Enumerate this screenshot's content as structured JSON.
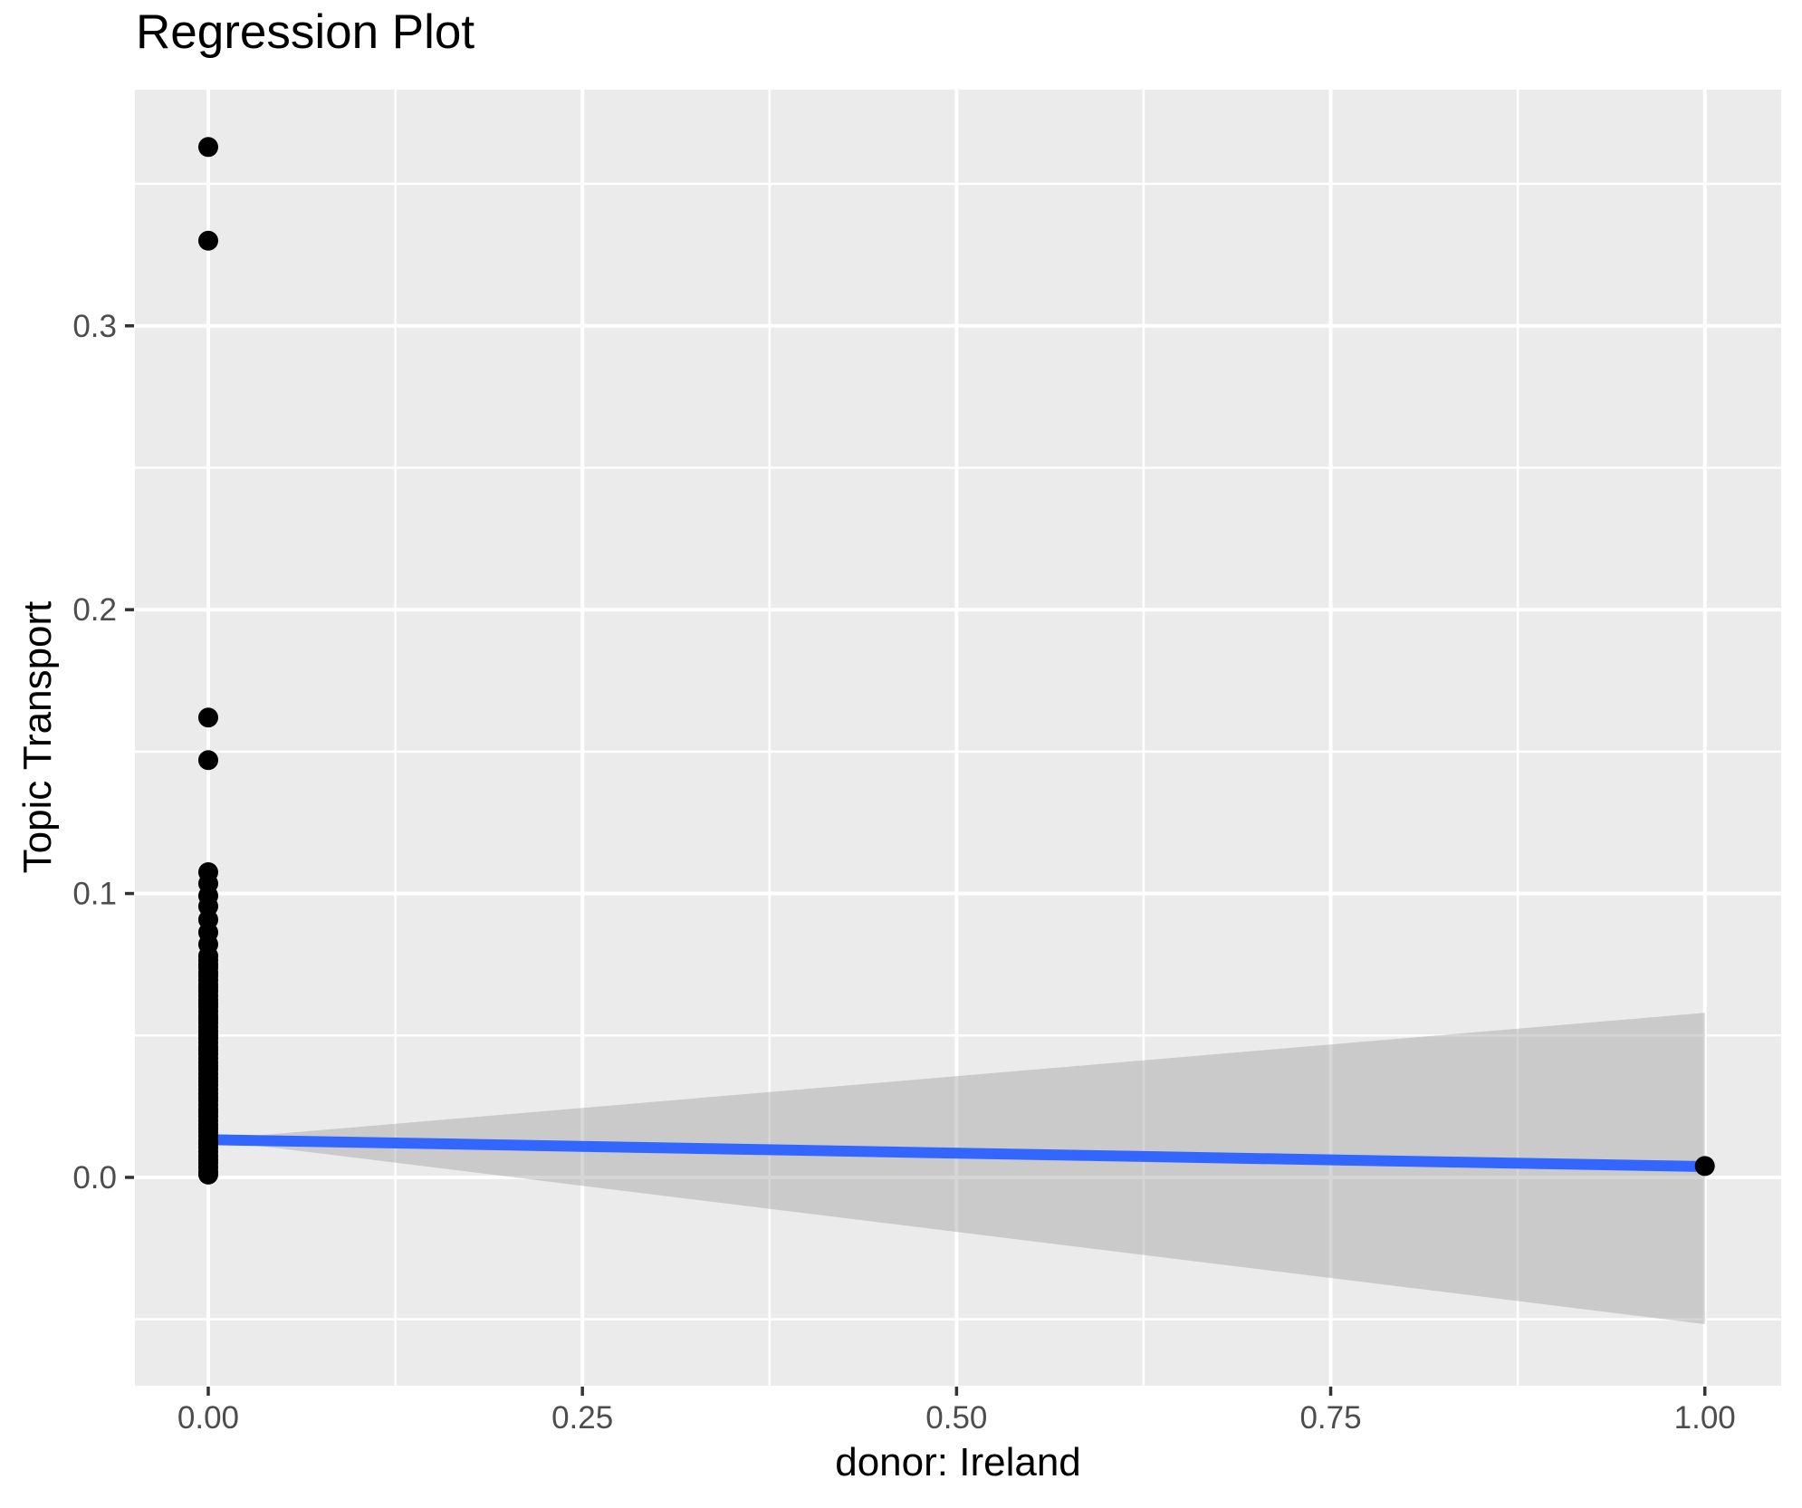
{
  "title": "Regression Plot",
  "chart_data": {
    "type": "scatter",
    "title": "Regression Plot",
    "xlabel": "donor: Ireland",
    "ylabel": "Topic Transport",
    "legend": "none",
    "grid": true,
    "xlim": [
      -0.049,
      1.051
    ],
    "ylim": [
      -0.0734,
      0.3832
    ],
    "x_ticks": [
      {
        "v": 0.0,
        "label": "0.00"
      },
      {
        "v": 0.25,
        "label": "0.25"
      },
      {
        "v": 0.5,
        "label": "0.50"
      },
      {
        "v": 0.75,
        "label": "0.75"
      },
      {
        "v": 1.0,
        "label": "1.00"
      }
    ],
    "y_ticks": [
      {
        "v": 0.0,
        "label": "0.0"
      },
      {
        "v": 0.1,
        "label": "0.1"
      },
      {
        "v": 0.2,
        "label": "0.2"
      },
      {
        "v": 0.3,
        "label": "0.3"
      }
    ],
    "x_minor": [
      0.125,
      0.375,
      0.625,
      0.875
    ],
    "y_minor": [
      -0.05,
      0.05,
      0.15,
      0.25,
      0.35
    ],
    "points_at_x0": [
      0.363,
      0.33,
      0.162,
      0.147,
      0.1075,
      0.1035,
      0.0992,
      0.0955,
      0.0908,
      0.0863,
      0.0821,
      0.078,
      0.0765,
      0.075,
      0.0738,
      0.0722,
      0.071,
      0.0695,
      0.068,
      0.0668,
      0.0655,
      0.064,
      0.0625,
      0.0612,
      0.06,
      0.0585,
      0.057,
      0.0558,
      0.0545,
      0.053,
      0.0515,
      0.0502,
      0.049,
      0.0475,
      0.046,
      0.0448,
      0.0435,
      0.042,
      0.0405,
      0.0392,
      0.038,
      0.0365,
      0.035,
      0.0338,
      0.0325,
      0.031,
      0.0295,
      0.0282,
      0.027,
      0.0255,
      0.024,
      0.0228,
      0.0215,
      0.02,
      0.0185,
      0.0172,
      0.016,
      0.0145,
      0.013,
      0.0118,
      0.0105,
      0.009,
      0.0075,
      0.0062,
      0.005,
      0.0035,
      0.002,
      0.001
    ],
    "points_other": [
      {
        "x": 1.0,
        "y": 0.004
      }
    ],
    "regression_line": {
      "x": [
        0.0,
        1.0
      ],
      "y": [
        0.0133,
        0.0038
      ]
    },
    "confidence_band": {
      "apex_x": 0.0,
      "apex_y": 0.0133,
      "end_x": 1.0,
      "end_top": 0.058,
      "end_bottom": -0.0517
    },
    "colors": {
      "panel_bg": "#EBEBEB",
      "grid_major": "#FFFFFF",
      "grid_minor": "#FFFFFF",
      "band": "rgba(153,153,153,0.40)",
      "line": "#3366FF",
      "point": "#000000",
      "axis_text": "#4D4D4D",
      "tick_mark": "#333333",
      "title_text": "#000000"
    },
    "point_radius": 11,
    "line_width": 12,
    "axis_text_size": 35
  }
}
